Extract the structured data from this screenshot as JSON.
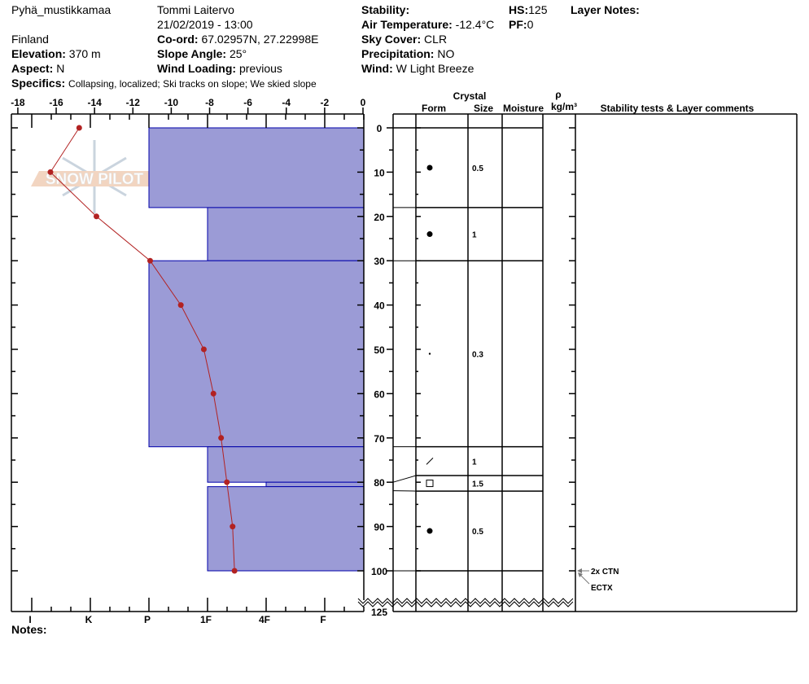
{
  "header": {
    "site": "Pyhä_mustikkamaa",
    "country": "Finland",
    "elevation_label": "Elevation:",
    "elevation": "370 m",
    "aspect_label": "Aspect:",
    "aspect": "N",
    "observer": "Tommi Laitervo",
    "datetime": "21/02/2019 - 13:00",
    "coord_label": "Co-ord:",
    "coord": "67.02957N, 27.22998E",
    "slope_label": "Slope Angle:",
    "slope": "25°",
    "wind_loading_label": "Wind Loading:",
    "wind_loading": "previous",
    "specifics_label": "Specifics:",
    "specifics": "Collapsing, localized;  Ski tracks on slope;  We skied slope",
    "stability_label": "Stability:",
    "stability": "",
    "air_temp_label": "Air Temperature:",
    "air_temp": "-12.4°C",
    "sky_label": "Sky Cover:",
    "sky": "CLR",
    "precip_label": "Precipitation:",
    "precip": "NO",
    "wind_label": "Wind:",
    "wind": "W Light Breeze",
    "hs_label": "HS:",
    "hs": "125",
    "pf_label": "PF:",
    "pf": "0",
    "layer_notes_label": "Layer Notes:",
    "notes_label": "Notes:"
  },
  "logo_text": "SNOW PILOT",
  "table_headers": {
    "crystal": "Crystal",
    "form": "Form",
    "size": "Size",
    "moisture": "Moisture",
    "rho": "ρ",
    "density_unit": "kg/m³",
    "comments": "Stability tests & Layer comments"
  },
  "chart_data": {
    "type": "snow-profile",
    "temperature_axis": {
      "ticks": [
        "-18",
        "-16",
        "-14",
        "-12",
        "-10",
        "-8",
        "-6",
        "-4",
        "-2",
        "0"
      ],
      "range": [
        -18,
        0
      ]
    },
    "depth_axis": {
      "ticks": [
        "0",
        "10",
        "20",
        "30",
        "40",
        "50",
        "60",
        "70",
        "80",
        "90",
        "100"
      ],
      "end_label": "125",
      "range": [
        0,
        125
      ]
    },
    "hardness_axis": {
      "ticks": [
        "I",
        "K",
        "P",
        "1F",
        "4F",
        "F"
      ]
    },
    "colors": {
      "hardness_fill": "#9b9bd6",
      "hardness_stroke": "#0000aa",
      "temperature": "#b22222"
    },
    "temperature_profile": [
      {
        "depth": 0,
        "temp": -14.8
      },
      {
        "depth": 10,
        "temp": -16.3
      },
      {
        "depth": 20,
        "temp": -13.9
      },
      {
        "depth": 30,
        "temp": -11.1
      },
      {
        "depth": 40,
        "temp": -9.5
      },
      {
        "depth": 50,
        "temp": -8.3
      },
      {
        "depth": 60,
        "temp": -7.8
      },
      {
        "depth": 70,
        "temp": -7.4
      },
      {
        "depth": 80,
        "temp": -7.1
      },
      {
        "depth": 90,
        "temp": -6.8
      },
      {
        "depth": 100,
        "temp": -6.7
      }
    ],
    "hardness_layers": [
      {
        "top": 0,
        "bottom": 18,
        "hardness": "P"
      },
      {
        "top": 18,
        "bottom": 30,
        "hardness": "1F"
      },
      {
        "top": 30,
        "bottom": 72,
        "hardness": "P"
      },
      {
        "top": 72,
        "bottom": 80,
        "hardness": "1F"
      },
      {
        "top": 80,
        "bottom": 81,
        "hardness": "4F"
      },
      {
        "top": 81,
        "bottom": 100,
        "hardness": "1F"
      }
    ],
    "crystal_layers": [
      {
        "top": 0,
        "bottom": 18,
        "form": "dot",
        "size": "0.5"
      },
      {
        "top": 18,
        "bottom": 30,
        "form": "dot",
        "size": "1"
      },
      {
        "top": 30,
        "bottom": 72,
        "form": "small-dot",
        "size": "0.3"
      },
      {
        "top": 72,
        "bottom": 78.5,
        "form": "slash",
        "size": "1"
      },
      {
        "top": 78.5,
        "bottom": 82,
        "form": "square",
        "size": "1.5"
      },
      {
        "top": 82,
        "bottom": 100,
        "form": "dot",
        "size": "0.5"
      }
    ],
    "stability_tests": [
      {
        "depth": 100,
        "label": "2x CTN"
      },
      {
        "depth": 100,
        "label": "ECTX"
      }
    ]
  }
}
